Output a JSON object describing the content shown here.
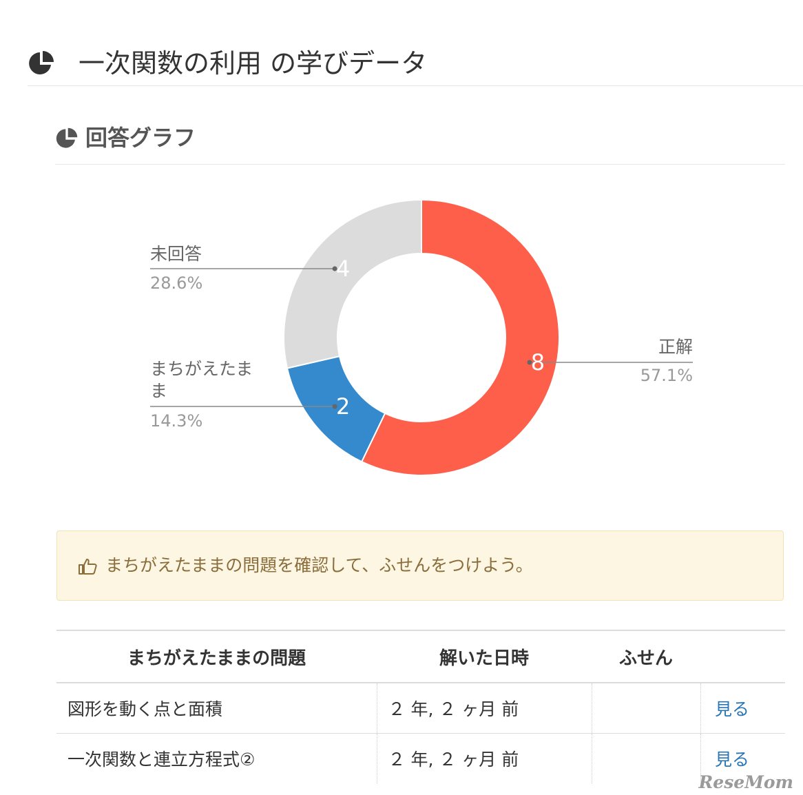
{
  "page": {
    "title": "一次関数の利用 の学びデータ",
    "icon": "pie-chart-icon"
  },
  "section": {
    "title": "回答グラフ",
    "icon": "pie-chart-icon"
  },
  "chart_data": {
    "type": "pie",
    "title": "",
    "donut": true,
    "series": [
      {
        "name": "正解",
        "value": 8,
        "percent": "57.1%",
        "color": "#fd5f4a"
      },
      {
        "name": "まちがえたまま",
        "value": 2,
        "percent": "14.3%",
        "color": "#3589cd"
      },
      {
        "name": "未回答",
        "value": 4,
        "percent": "28.6%",
        "color": "#dcdcdc"
      }
    ]
  },
  "alert": {
    "icon": "thumbs-up-icon",
    "message": "まちがえたままの問題を確認して、ふせんをつけよう。",
    "color": "#8a6d3b",
    "background": "#fcf6e3"
  },
  "table": {
    "headers": [
      "まちがえたままの問題",
      "解いた日時",
      "ふせん",
      ""
    ],
    "rows": [
      {
        "problem": "図形を動く点と面積",
        "solved": "２ 年, ２ ヶ月 前",
        "sticky": "",
        "link": "見る"
      },
      {
        "problem": "一次関数と連立方程式②",
        "solved": "２ 年, ２ ヶ月 前",
        "sticky": "",
        "link": "見る"
      }
    ],
    "link_color": "#2a76b5"
  },
  "watermark": "ReseMom"
}
